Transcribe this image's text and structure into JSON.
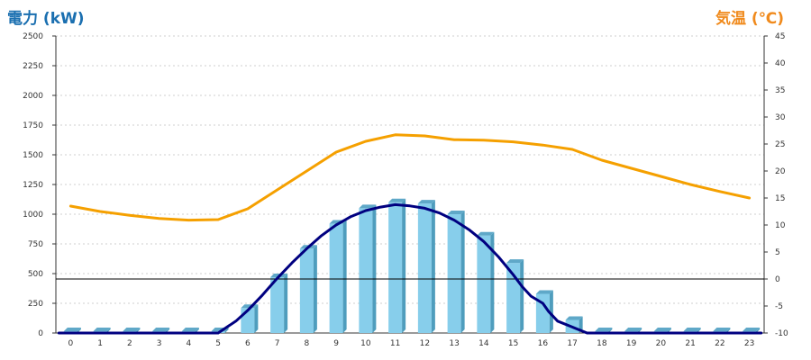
{
  "chart_data": {
    "type": "bar+line",
    "title_left": "電力 (kW)",
    "title_right": "気温 (℃)",
    "categories": [
      "0",
      "1",
      "2",
      "3",
      "4",
      "5",
      "6",
      "7",
      "8",
      "9",
      "10",
      "11",
      "12",
      "13",
      "14",
      "15",
      "16",
      "17",
      "18",
      "19",
      "20",
      "21",
      "22",
      "23"
    ],
    "y_left": {
      "min": 0,
      "max": 2500,
      "ticks": [
        0,
        250,
        500,
        750,
        1000,
        1250,
        1500,
        1750,
        2000,
        2250,
        2500
      ]
    },
    "y_right": {
      "min": -10,
      "max": 45,
      "ticks": [
        -10,
        -5,
        0,
        5,
        10,
        15,
        20,
        25,
        30,
        35,
        40,
        45
      ]
    },
    "grid": true,
    "series": [
      {
        "kind": "bar",
        "axis": "left",
        "color": "#87ceeb",
        "values": [
          0,
          0,
          0,
          0,
          0,
          0,
          210,
          470,
          710,
          920,
          1050,
          1100,
          1090,
          1000,
          820,
          590,
          330,
          110,
          0,
          0,
          0,
          0,
          0,
          0
        ]
      },
      {
        "kind": "line",
        "axis": "left",
        "color": "#000080",
        "points": [
          [
            -0.4,
            0
          ],
          [
            0,
            0
          ],
          [
            1,
            0
          ],
          [
            2,
            0
          ],
          [
            3,
            0
          ],
          [
            4,
            0
          ],
          [
            5,
            0
          ],
          [
            5.3,
            50
          ],
          [
            5.6,
            100
          ],
          [
            6,
            190
          ],
          [
            6.5,
            320
          ],
          [
            7,
            460
          ],
          [
            7.5,
            590
          ],
          [
            8,
            710
          ],
          [
            8.5,
            820
          ],
          [
            9,
            910
          ],
          [
            9.5,
            980
          ],
          [
            10,
            1030
          ],
          [
            10.5,
            1060
          ],
          [
            11,
            1080
          ],
          [
            11.5,
            1070
          ],
          [
            12,
            1050
          ],
          [
            12.5,
            1010
          ],
          [
            13,
            950
          ],
          [
            13.5,
            870
          ],
          [
            14,
            770
          ],
          [
            14.5,
            640
          ],
          [
            15,
            490
          ],
          [
            15.3,
            390
          ],
          [
            15.6,
            310
          ],
          [
            16,
            250
          ],
          [
            16.2,
            180
          ],
          [
            16.5,
            100
          ],
          [
            17,
            50
          ],
          [
            17.5,
            0
          ],
          [
            18,
            0
          ],
          [
            19,
            0
          ],
          [
            20,
            0
          ],
          [
            21,
            0
          ],
          [
            22,
            0
          ],
          [
            23,
            0
          ],
          [
            23.4,
            0
          ]
        ]
      },
      {
        "kind": "line",
        "axis": "right",
        "color": "#f5a000",
        "points": [
          [
            0,
            13.5
          ],
          [
            1,
            12.5
          ],
          [
            2,
            11.8
          ],
          [
            3,
            11.2
          ],
          [
            4,
            10.9
          ],
          [
            5,
            11.0
          ],
          [
            6,
            13.0
          ],
          [
            7,
            16.5
          ],
          [
            8,
            20.0
          ],
          [
            9,
            23.5
          ],
          [
            10,
            25.5
          ],
          [
            11,
            26.7
          ],
          [
            12,
            26.5
          ],
          [
            13,
            25.8
          ],
          [
            14,
            25.7
          ],
          [
            15,
            25.4
          ],
          [
            16,
            24.8
          ],
          [
            17,
            24.0
          ],
          [
            18,
            22.0
          ],
          [
            19,
            20.5
          ],
          [
            20,
            19.0
          ],
          [
            21,
            17.5
          ],
          [
            22,
            16.2
          ],
          [
            23,
            15.0
          ]
        ]
      }
    ],
    "reference_line": {
      "axis": "right",
      "value": 0,
      "color": "#000000"
    }
  }
}
